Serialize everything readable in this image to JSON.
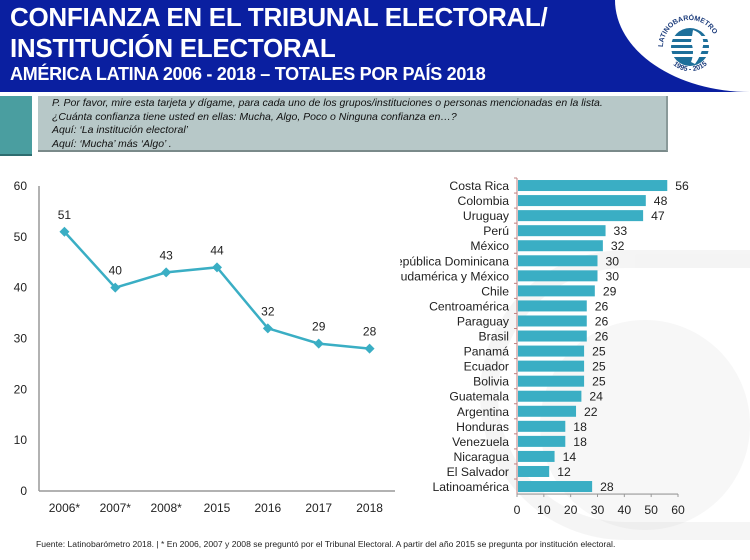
{
  "header": {
    "title_line1": "CONFIANZA EN EL TRIBUNAL ELECTORAL/",
    "title_line2": "INSTITUCIÓN ELECTORAL",
    "subtitle": "AMÉRICA LATINA 2006 - 2018 – TOTALES POR PAÍS 2018",
    "logo_text": "LATINOBARÓMETRO",
    "logo_years": "1995 - 2015"
  },
  "question": {
    "lines": [
      "P. Por favor, mire esta tarjeta y dígame, para cada uno de los grupos/instituciones o personas mencionadas en la lista.",
      "¿Cuánta confianza tiene usted en ellas: Mucha, Algo, Poco o Ninguna confianza en…?",
      "Aquí: ‘La institución electoral’",
      "Aquí: ‘Mucha’ más ‘Algo’ ."
    ]
  },
  "footer": {
    "source": "Fuente: Latinobarómetro 2018. | * En 2006, 2007 y 2008 se preguntó por el Tribunal Electoral. A partir del año 2015 se pregunta por institución electoral."
  },
  "colors": {
    "header_bg": "#0a1fa0",
    "series": "#3aaec4",
    "axis": "#999999"
  },
  "chart_data": [
    {
      "type": "line",
      "title": "",
      "xlabel": "",
      "ylabel": "",
      "categories": [
        "2006*",
        "2007*",
        "2008*",
        "2015",
        "2016",
        "2017",
        "2018"
      ],
      "values": [
        51,
        40,
        43,
        44,
        32,
        29,
        28
      ],
      "ylim": [
        0,
        60
      ],
      "yticks": [
        0,
        10,
        20,
        30,
        40,
        50,
        60
      ],
      "grid": false,
      "data_labels": true
    },
    {
      "type": "bar",
      "orientation": "horizontal",
      "title": "",
      "xlabel": "",
      "ylabel": "",
      "categories": [
        "Costa Rica",
        "Colombia",
        "Uruguay",
        "Perú",
        "México",
        "República Dominicana",
        "Sudamérica y México",
        "Chile",
        "Centroamérica",
        "Paraguay",
        "Brasil",
        "Panamá",
        "Ecuador",
        "Bolivia",
        "Guatemala",
        "Argentina",
        "Honduras",
        "Venezuela",
        "Nicaragua",
        "El Salvador",
        "Latinoamérica"
      ],
      "values": [
        56,
        48,
        47,
        33,
        32,
        30,
        30,
        29,
        26,
        26,
        26,
        25,
        25,
        25,
        24,
        22,
        18,
        18,
        14,
        12,
        28
      ],
      "xlim": [
        0,
        60
      ],
      "xticks": [
        0,
        10,
        20,
        30,
        40,
        50,
        60
      ],
      "grid": false,
      "data_labels": true
    }
  ]
}
